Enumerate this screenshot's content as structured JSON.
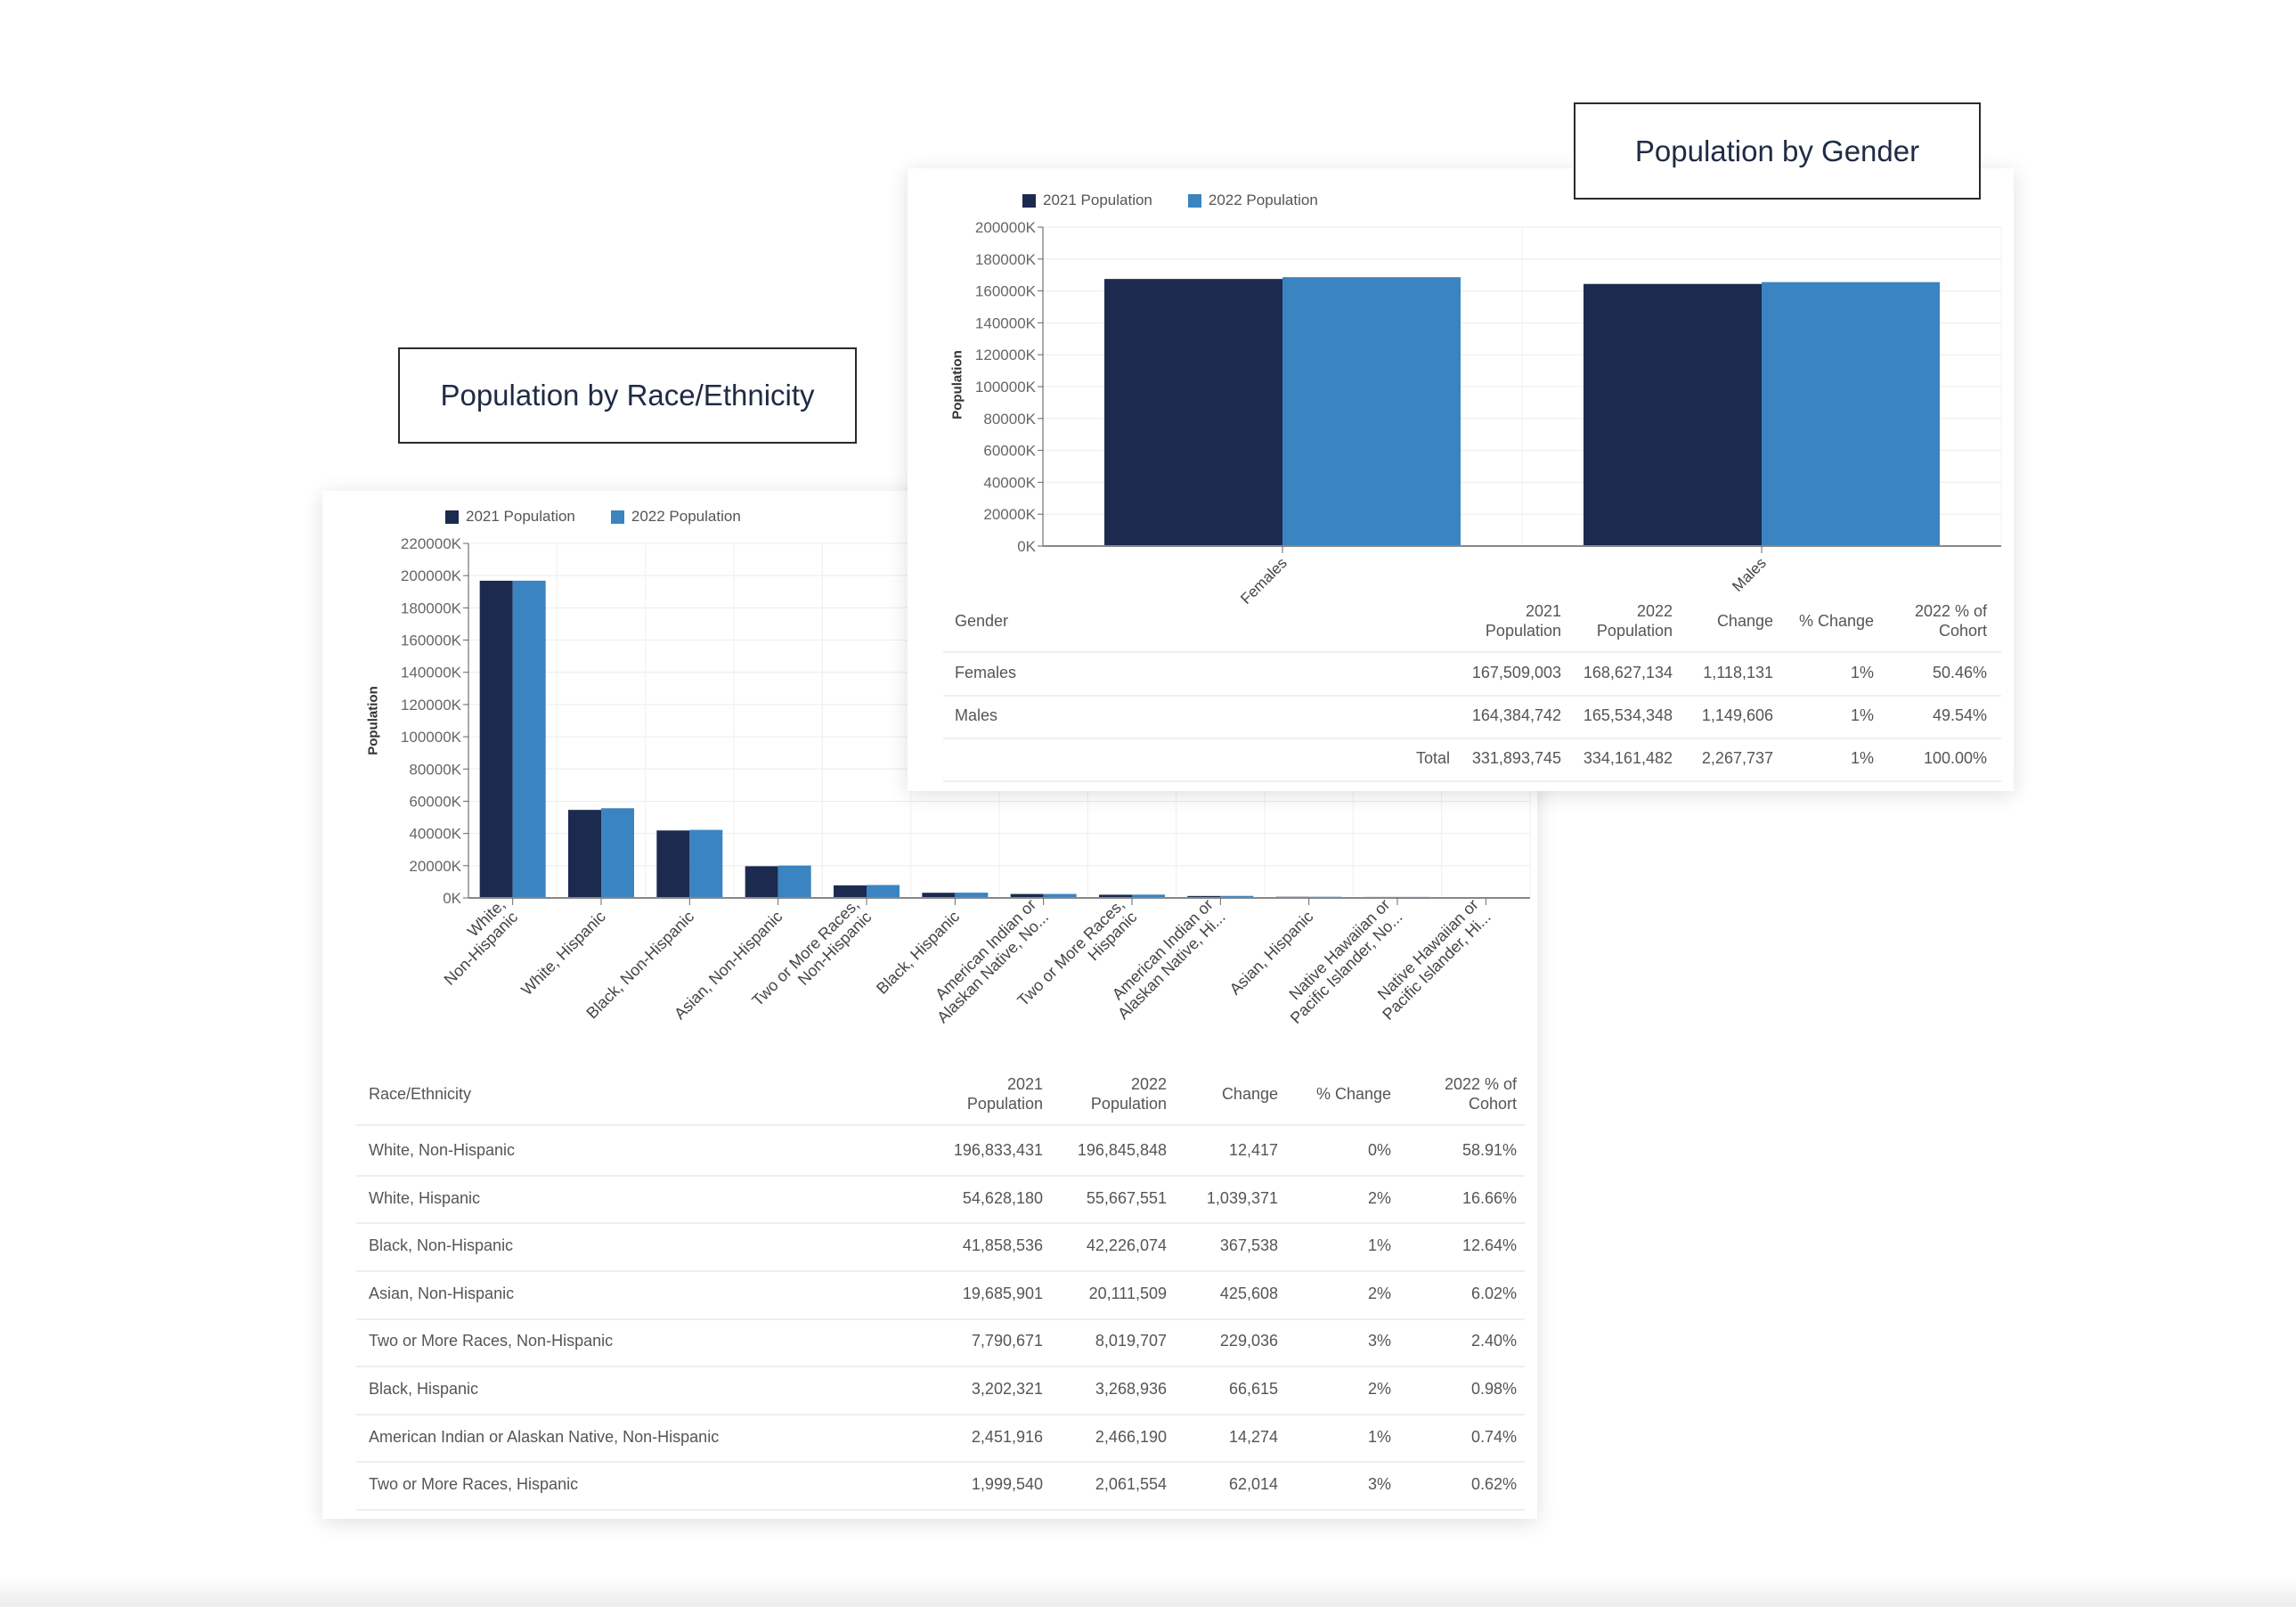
{
  "colors": {
    "series_2021": "#1b2a4e",
    "series_2022": "#3a84c1"
  },
  "race": {
    "title": "Population by Race/Ethnicity",
    "table": {
      "headers": [
        "Race/Ethnicity",
        "2021\nPopulation",
        "2022\nPopulation",
        "Change",
        "% Change",
        "2022 % of\nCohort"
      ],
      "rows": [
        [
          "White, Non-Hispanic",
          "196,833,431",
          "196,845,848",
          "12,417",
          "0%",
          "58.91%"
        ],
        [
          "White, Hispanic",
          "54,628,180",
          "55,667,551",
          "1,039,371",
          "2%",
          "16.66%"
        ],
        [
          "Black, Non-Hispanic",
          "41,858,536",
          "42,226,074",
          "367,538",
          "1%",
          "12.64%"
        ],
        [
          "Asian, Non-Hispanic",
          "19,685,901",
          "20,111,509",
          "425,608",
          "2%",
          "6.02%"
        ],
        [
          "Two or More Races, Non-Hispanic",
          "7,790,671",
          "8,019,707",
          "229,036",
          "3%",
          "2.40%"
        ],
        [
          "Black, Hispanic",
          "3,202,321",
          "3,268,936",
          "66,615",
          "2%",
          "0.98%"
        ],
        [
          "American Indian or Alaskan Native, Non-Hispanic",
          "2,451,916",
          "2,466,190",
          "14,274",
          "1%",
          "0.74%"
        ],
        [
          "Two or More Races, Hispanic",
          "1,999,540",
          "2,061,554",
          "62,014",
          "3%",
          "0.62%"
        ]
      ]
    }
  },
  "gender": {
    "title": "Population by Gender",
    "table": {
      "headers": [
        "Gender",
        "2021\nPopulation",
        "2022\nPopulation",
        "Change",
        "% Change",
        "2022 % of\nCohort"
      ],
      "rows": [
        [
          "Females",
          "167,509,003",
          "168,627,134",
          "1,118,131",
          "1%",
          "50.46%"
        ],
        [
          "Males",
          "164,384,742",
          "165,534,348",
          "1,149,606",
          "1%",
          "49.54%"
        ]
      ],
      "total": [
        "Total",
        "331,893,745",
        "334,161,482",
        "2,267,737",
        "1%",
        "100.00%"
      ]
    }
  },
  "chart_data": [
    {
      "type": "bar",
      "ylabel": "Population",
      "xlabel": "",
      "ylim": [
        0,
        220000000
      ],
      "yticks": [
        0,
        20000000,
        40000000,
        60000000,
        80000000,
        100000000,
        120000000,
        140000000,
        160000000,
        180000000,
        200000000,
        220000000
      ],
      "ytick_labels": [
        "0K",
        "20000K",
        "40000K",
        "60000K",
        "80000K",
        "100000K",
        "120000K",
        "140000K",
        "160000K",
        "180000K",
        "200000K",
        "220000K"
      ],
      "grid": true,
      "legend": "top-left",
      "categories": [
        "White,\nNon-Hispanic",
        "White, Hispanic",
        "Black, Non-Hispanic",
        "Asian, Non-Hispanic",
        "Two or More Races,\nNon-Hispanic",
        "Black, Hispanic",
        "American Indian or\nAlaskan Native, No...",
        "Two or More Races,\nHispanic",
        "American Indian or\nAlaskan Native, Hi...",
        "Asian, Hispanic",
        "Native Hawaiian or\nPacific Islander, No...",
        "Native Hawaiian or\nPacific Islander, Hi..."
      ],
      "series": [
        {
          "name": "2021 Population",
          "values": [
            196833431,
            54628180,
            41858536,
            19685901,
            7790671,
            3202321,
            2451916,
            1999540,
            1200000,
            700000,
            600000,
            200000
          ]
        },
        {
          "name": "2022 Population",
          "values": [
            196845848,
            55667551,
            42226074,
            20111509,
            8019707,
            3268936,
            2466190,
            2061554,
            1250000,
            720000,
            620000,
            210000
          ]
        }
      ]
    },
    {
      "type": "bar",
      "ylabel": "Population",
      "xlabel": "",
      "ylim": [
        0,
        200000000
      ],
      "yticks": [
        0,
        20000000,
        40000000,
        60000000,
        80000000,
        100000000,
        120000000,
        140000000,
        160000000,
        180000000,
        200000000
      ],
      "ytick_labels": [
        "0K",
        "20000K",
        "40000K",
        "60000K",
        "80000K",
        "100000K",
        "120000K",
        "140000K",
        "160000K",
        "180000K",
        "200000K"
      ],
      "grid": true,
      "legend": "top-left",
      "categories": [
        "Females",
        "Males"
      ],
      "series": [
        {
          "name": "2021 Population",
          "values": [
            167509003,
            164384742
          ]
        },
        {
          "name": "2022 Population",
          "values": [
            168627134,
            165534348
          ]
        }
      ]
    }
  ]
}
